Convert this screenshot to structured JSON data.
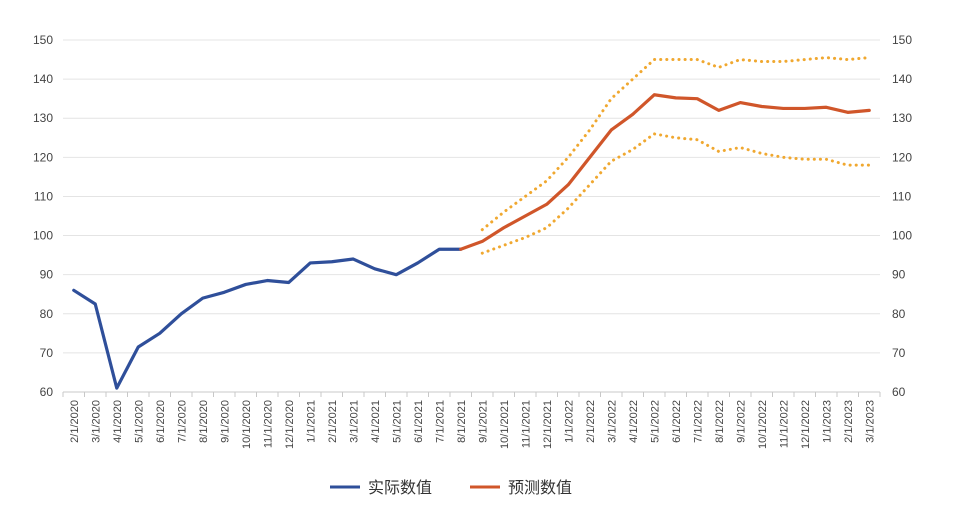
{
  "chart_data": {
    "type": "line",
    "ylim": [
      60,
      150
    ],
    "yticks": [
      60,
      70,
      80,
      90,
      100,
      110,
      120,
      130,
      140,
      150
    ],
    "grid": true,
    "legend_position": "bottom",
    "x": [
      "2/1/2020",
      "3/1/2020",
      "4/1/2020",
      "5/1/2020",
      "6/1/2020",
      "7/1/2020",
      "8/1/2020",
      "9/1/2020",
      "10/1/2020",
      "11/1/2020",
      "12/1/2020",
      "1/1/2021",
      "2/1/2021",
      "3/1/2021",
      "4/1/2021",
      "5/1/2021",
      "6/1/2021",
      "7/1/2021",
      "8/1/2021",
      "9/1/2021",
      "10/1/2021",
      "11/1/2021",
      "12/1/2021",
      "1/1/2022",
      "2/1/2022",
      "3/1/2022",
      "4/1/2022",
      "5/1/2022",
      "6/1/2022",
      "7/1/2022",
      "8/1/2022",
      "9/1/2022",
      "10/1/2022",
      "11/1/2022",
      "12/1/2022",
      "1/1/2023",
      "2/1/2023",
      "3/1/2023"
    ],
    "series": [
      {
        "name": "实际数值",
        "color": "#2f4f9a",
        "style": "solid",
        "values": [
          86,
          82.5,
          61,
          71.5,
          75,
          80,
          84,
          85.5,
          87.5,
          88.5,
          88,
          93,
          93.3,
          94,
          91.5,
          90,
          93,
          96.5,
          96.5,
          null,
          null,
          null,
          null,
          null,
          null,
          null,
          null,
          null,
          null,
          null,
          null,
          null,
          null,
          null,
          null,
          null,
          null,
          null
        ]
      },
      {
        "name": "预测数值",
        "color": "#d0562a",
        "style": "solid",
        "values": [
          null,
          null,
          null,
          null,
          null,
          null,
          null,
          null,
          null,
          null,
          null,
          null,
          null,
          null,
          null,
          null,
          null,
          null,
          96.5,
          98.5,
          102,
          105,
          108,
          113,
          120,
          127,
          131,
          136,
          135.2,
          135,
          132,
          134,
          133,
          132.5,
          132.5,
          132.8,
          131.5,
          132
        ]
      },
      {
        "color": "#f0a830",
        "style": "dotted",
        "values": [
          null,
          null,
          null,
          null,
          null,
          null,
          null,
          null,
          null,
          null,
          null,
          null,
          null,
          null,
          null,
          null,
          null,
          null,
          null,
          101.5,
          106,
          110,
          114,
          120,
          127,
          135,
          140,
          145,
          145,
          145,
          143,
          145,
          144.5,
          144.5,
          145,
          145.5,
          145,
          145.5
        ]
      },
      {
        "color": "#f0a830",
        "style": "dotted",
        "values": [
          null,
          null,
          null,
          null,
          null,
          null,
          null,
          null,
          null,
          null,
          null,
          null,
          null,
          null,
          null,
          null,
          null,
          null,
          null,
          95.5,
          97.5,
          99.5,
          102,
          107,
          113,
          119,
          122,
          126,
          125,
          124.5,
          121.5,
          122.5,
          121,
          120,
          119.5,
          119.5,
          118,
          118
        ]
      }
    ]
  }
}
